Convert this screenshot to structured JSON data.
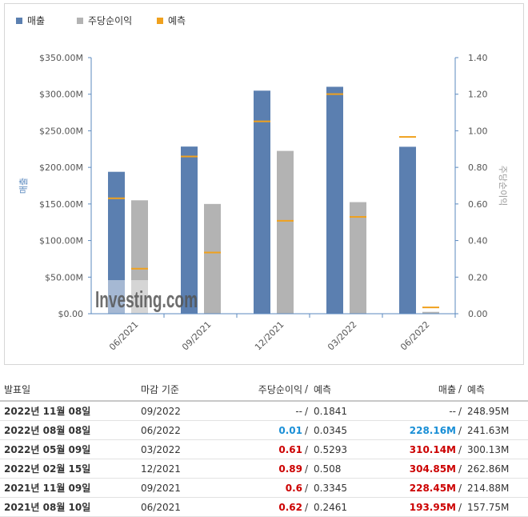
{
  "legend": {
    "revenue": "매출",
    "eps": "주당순이익",
    "forecast": "예측"
  },
  "colors": {
    "revenue": "#5b7fb0",
    "eps": "#b3b3b3",
    "forecast": "#f0a11e",
    "axis": "#5b8abf"
  },
  "watermark": "Investing.com",
  "chart_data": {
    "type": "bar",
    "categories": [
      "06/2021",
      "09/2021",
      "12/2021",
      "03/2022",
      "06/2022"
    ],
    "y_left": {
      "label": "매출",
      "range": [
        0,
        350
      ],
      "ticks": [
        "$0.00",
        "$50.00M",
        "$100.00M",
        "$150.00M",
        "$200.00M",
        "$250.00M",
        "$300.00M",
        "$350.00M"
      ]
    },
    "y_right": {
      "label": "주당순이익",
      "range": [
        0,
        1.4
      ],
      "ticks": [
        "0.00",
        "0.20",
        "0.40",
        "0.60",
        "0.80",
        "1.00",
        "1.20",
        "1.40"
      ]
    },
    "series": [
      {
        "name": "매출",
        "axis": "left",
        "values": [
          193.95,
          228.45,
          304.85,
          310.14,
          228.16
        ]
      },
      {
        "name": "주당순이익",
        "axis": "right",
        "values": [
          0.62,
          0.6,
          0.89,
          0.61,
          0.01
        ]
      }
    ],
    "forecast": {
      "revenue": [
        157.75,
        214.88,
        262.86,
        300.13,
        241.63
      ],
      "eps": [
        0.2461,
        0.3345,
        0.508,
        0.5293,
        0.0345
      ]
    },
    "grid": false,
    "legend_position": "top-left"
  },
  "table": {
    "headers": {
      "date": "발표일",
      "period": "마감 기준",
      "eps": "주당순이익",
      "eps_sep": "/",
      "eps_forecast": "예측",
      "revenue": "매출",
      "revenue_sep": "/",
      "revenue_forecast": "예측"
    },
    "rows": [
      {
        "date": "2022년 11월 08일",
        "period": "09/2022",
        "eps": "--",
        "eps_cls": "neu",
        "eps_forecast": "0.1841",
        "revenue": "--",
        "rev_cls": "neu",
        "revenue_forecast": "248.95M"
      },
      {
        "date": "2022년 08월 08일",
        "period": "06/2022",
        "eps": "0.01",
        "eps_cls": "neg",
        "eps_forecast": "0.0345",
        "revenue": "228.16M",
        "rev_cls": "neg",
        "revenue_forecast": "241.63M"
      },
      {
        "date": "2022년 05월 09일",
        "period": "03/2022",
        "eps": "0.61",
        "eps_cls": "pos",
        "eps_forecast": "0.5293",
        "revenue": "310.14M",
        "rev_cls": "pos",
        "revenue_forecast": "300.13M"
      },
      {
        "date": "2022년 02월 15일",
        "period": "12/2021",
        "eps": "0.89",
        "eps_cls": "pos",
        "eps_forecast": "0.508",
        "revenue": "304.85M",
        "rev_cls": "pos",
        "revenue_forecast": "262.86M"
      },
      {
        "date": "2021년 11월 09일",
        "period": "09/2021",
        "eps": "0.6",
        "eps_cls": "pos",
        "eps_forecast": "0.3345",
        "revenue": "228.45M",
        "rev_cls": "pos",
        "revenue_forecast": "214.88M"
      },
      {
        "date": "2021년 08월 10일",
        "period": "06/2021",
        "eps": "0.62",
        "eps_cls": "pos",
        "eps_forecast": "0.2461",
        "revenue": "193.95M",
        "rev_cls": "pos",
        "revenue_forecast": "157.75M"
      }
    ]
  }
}
